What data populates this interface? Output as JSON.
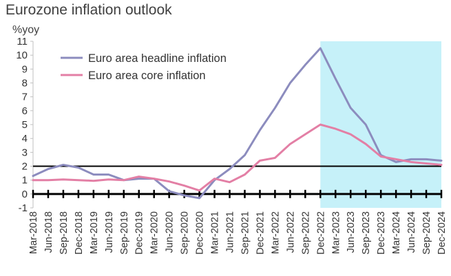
{
  "chart_data": {
    "type": "line",
    "title": "Eurozone inflation outlook",
    "ylabel": "%yoy",
    "ylim": [
      -1,
      11
    ],
    "yticks": [
      -1,
      0,
      1,
      2,
      3,
      4,
      5,
      6,
      7,
      8,
      9,
      10,
      11
    ],
    "categories": [
      "Mar-2018",
      "Jun-2018",
      "Sep-2018",
      "Dec-2018",
      "Mar-2019",
      "Jun-2019",
      "Sep-2019",
      "Dec-2019",
      "Mar-2020",
      "Jun-2020",
      "Sep-2020",
      "Dec-2020",
      "Mar-2021",
      "Jun-2021",
      "Sep-2021",
      "Dec-2021",
      "Mar-2022",
      "Jun-2022",
      "Sep-2022",
      "Dec-2022",
      "Mar-2023",
      "Jun-2023",
      "Sep-2023",
      "Dec-2023",
      "Mar-2024",
      "Jun-2024",
      "Sep-2024",
      "Dec-2024"
    ],
    "series": [
      {
        "name": "Euro area headline inflation",
        "color": "#8c8cbe",
        "values": [
          1.3,
          1.8,
          2.1,
          1.9,
          1.4,
          1.4,
          1.0,
          1.1,
          1.1,
          0.2,
          -0.1,
          -0.3,
          1.0,
          1.8,
          2.8,
          4.6,
          6.2,
          8.0,
          9.3,
          10.5,
          8.3,
          6.2,
          5.0,
          2.8,
          2.3,
          2.5,
          2.5,
          2.4
        ]
      },
      {
        "name": "Euro area core inflation",
        "color": "#e37fa5",
        "values": [
          1.0,
          1.0,
          1.05,
          1.0,
          0.95,
          1.05,
          1.0,
          1.25,
          1.1,
          0.9,
          0.6,
          0.25,
          1.1,
          0.85,
          1.4,
          2.4,
          2.6,
          3.6,
          4.3,
          5.0,
          4.7,
          4.3,
          3.6,
          2.7,
          2.5,
          2.3,
          2.2,
          2.1
        ]
      }
    ],
    "reference_line": {
      "value": 2
    },
    "forecast_region": {
      "start": "Dec-2022",
      "end": "Dec-2024",
      "color": "#c6f1f9"
    },
    "legend_position": "top-left",
    "grid": false
  }
}
